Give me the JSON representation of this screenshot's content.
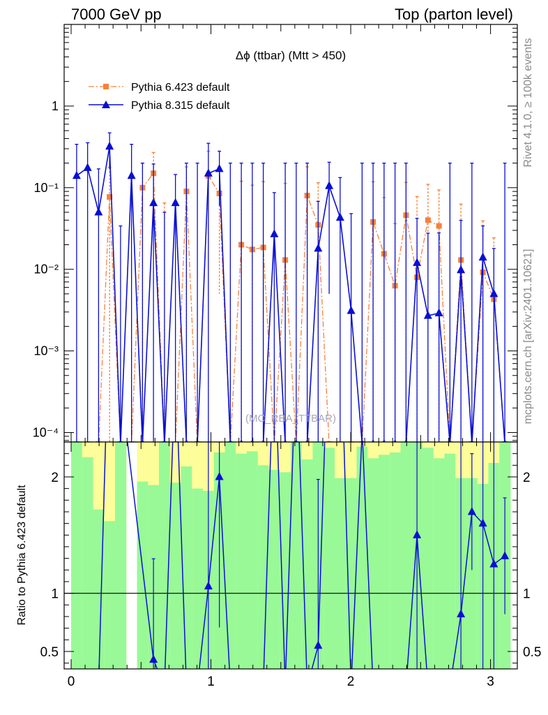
{
  "header": {
    "left": "7000 GeV pp",
    "right": "Top (parton level)"
  },
  "side_labels": {
    "rivet": "Rivet 4.1.0, ≥ 100k events",
    "mcplots": "mcplots.cern.ch [arXiv:2401.10621]"
  },
  "chart_data": [
    {
      "type": "line",
      "title": "Δϕ (ttbar) (Mtt > 450)",
      "watermark": "(MC_RBA_TTBAR)",
      "yscale": "log",
      "xlim": [
        -0.05,
        3.1916
      ],
      "ylim": [
        7.66e-05,
        10
      ],
      "legend_position": "top-left",
      "ytick_labels": {
        "1": "1",
        "0.1": "10⁻¹",
        "0.01": "10⁻²",
        "0.001": "10⁻³",
        "0.0001": "10⁻⁴"
      },
      "series": [
        {
          "name": "Pythia 6.423 default",
          "color": "#f5813a",
          "marker": "square",
          "linestyle": "dash-dot",
          "x": [
            0.0393,
            0.1178,
            0.1963,
            0.2749,
            0.3534,
            0.432,
            0.5105,
            0.589,
            0.6676,
            0.7461,
            0.8247,
            0.9032,
            0.9817,
            1.0603,
            1.1388,
            1.2174,
            1.2959,
            1.3744,
            1.453,
            1.5315,
            1.6101,
            1.6886,
            1.7671,
            1.8457,
            1.9242,
            2.0028,
            2.0813,
            2.1598,
            2.2384,
            2.3169,
            2.3955,
            2.474,
            2.5525,
            2.6311,
            2.7096,
            2.7882,
            2.8667,
            2.9452,
            3.0238,
            3.1023
          ],
          "values": [
            0,
            0,
            0,
            0.077,
            0,
            0,
            0.1,
            0.15,
            0,
            0,
            0.09,
            0,
            0.14,
            0.085,
            0,
            0.02,
            0.0175,
            0.0185,
            0,
            0.013,
            0,
            0.08,
            0.035,
            0,
            0,
            0,
            0,
            0.038,
            0.0155,
            0.0063,
            0.046,
            0.008,
            0.04,
            0.034,
            0,
            0.013,
            0,
            0.0092,
            0.0043,
            0
          ],
          "err": [
            0,
            0,
            0,
            0.1,
            0,
            0,
            0.1,
            0.12,
            0.065,
            0,
            0.09,
            0,
            0.14,
            0.08,
            0,
            0.1,
            0.09,
            0.1,
            0,
            0.1,
            0,
            0.1,
            0.08,
            0,
            0,
            0,
            0,
            0.08,
            0.06,
            0.03,
            0.07,
            0.07,
            0.07,
            0.06,
            0,
            0.05,
            0,
            0.03,
            0.02,
            0
          ]
        },
        {
          "name": "Pythia 8.315 default",
          "color": "#0a0fd2",
          "marker": "triangle",
          "linestyle": "solid",
          "x": [
            0.0393,
            0.1178,
            0.1963,
            0.2749,
            0.3534,
            0.432,
            0.5105,
            0.589,
            0.6676,
            0.7461,
            0.8247,
            0.9032,
            0.9817,
            1.0603,
            1.1388,
            1.2174,
            1.2959,
            1.3744,
            1.453,
            1.5315,
            1.6101,
            1.6886,
            1.7671,
            1.8457,
            1.9242,
            2.0028,
            2.0813,
            2.1598,
            2.2384,
            2.3169,
            2.3955,
            2.474,
            2.5525,
            2.6311,
            2.7096,
            2.7882,
            2.8667,
            2.9452,
            3.0238,
            3.1023
          ],
          "values": [
            0.14,
            0.175,
            0.05,
            0.32,
            0,
            0.14,
            0,
            0.065,
            0,
            0.065,
            0,
            0,
            0.15,
            0.17,
            0,
            0,
            0,
            0,
            0.027,
            0,
            0,
            0,
            0.018,
            0.105,
            0.043,
            0.0031,
            0,
            0,
            0,
            0,
            0,
            0.012,
            0.0027,
            0.0029,
            0,
            0.0098,
            0,
            0.014,
            0.005,
            0
          ],
          "err": [
            0.2,
            0.18,
            0.12,
            0.15,
            0.034,
            0.2,
            0.2,
            0.13,
            0.05,
            0.08,
            0.2,
            0.2,
            0.2,
            0.11,
            0.2,
            0.2,
            0.2,
            0.2,
            0.06,
            0.2,
            0.2,
            0.2,
            0.05,
            0.1,
            0.09,
            0.045,
            0.2,
            0.2,
            0.2,
            0.2,
            0.2,
            0.03,
            0.025,
            0.025,
            0.2,
            0.03,
            0.2,
            0.02,
            0.013,
            0.2
          ]
        }
      ]
    },
    {
      "type": "line",
      "ylabel": "Ratio to Pythia 6.423 default",
      "xlim": [
        -0.05,
        3.1916
      ],
      "ylim": [
        0.35,
        2.3
      ],
      "xticks": [
        0,
        1,
        2,
        3
      ],
      "yticks": [
        0.5,
        1,
        2
      ],
      "reference_line": 1,
      "band_colors": {
        "inner": "#99f997",
        "outer": "#fdfd99"
      },
      "band_edges": [
        0,
        0.0785,
        0.1571,
        0.2356,
        0.3142,
        0.3927,
        0.4712,
        0.5498,
        0.6283,
        0.7069,
        0.7854,
        0.8639,
        0.9425,
        1.021,
        1.0996,
        1.1781,
        1.2566,
        1.3352,
        1.4137,
        1.4923,
        1.5708,
        1.6493,
        1.7279,
        1.8064,
        1.885,
        1.9635,
        2.042,
        2.1206,
        2.1991,
        2.2777,
        2.3562,
        2.4347,
        2.5133,
        2.5918,
        2.6704,
        2.7489,
        2.8274,
        2.906,
        2.9845,
        3.0631,
        3.1416
      ],
      "band_inner_top": [
        2.3,
        2.17,
        1.72,
        1.62,
        2.3,
        0,
        1.96,
        1.93,
        2.3,
        1.95,
        2.09,
        1.9,
        1.88,
        2.21,
        2.3,
        2.2,
        2.22,
        2.1,
        2.06,
        2.04,
        2.3,
        2.15,
        2.3,
        2.25,
        1.99,
        1.99,
        2.26,
        2.16,
        2.19,
        2.21,
        2.3,
        2.3,
        2.25,
        2.16,
        2.2,
        1.99,
        1.99,
        1.94,
        2.12,
        2.3
      ],
      "band_outer_top": [
        2.3,
        2.3,
        2.3,
        2.3,
        2.3,
        0,
        2.3,
        2.3,
        2.3,
        2.3,
        2.3,
        2.3,
        2.3,
        2.3,
        2.3,
        2.3,
        2.3,
        2.3,
        2.3,
        2.3,
        2.3,
        2.3,
        2.3,
        2.3,
        2.3,
        2.3,
        2.3,
        2.3,
        2.3,
        2.3,
        2.3,
        2.3,
        2.3,
        2.3,
        2.3,
        2.3,
        2.3,
        2.3,
        2.3,
        2.3
      ],
      "ratio_x": [
        0.0393,
        0.1178,
        0.1963,
        0.2749,
        0.3534,
        0.589,
        0.6676,
        0.7461,
        0.8247,
        0.9032,
        0.9817,
        1.0603,
        1.1388,
        1.2174,
        1.2959,
        1.3744,
        1.453,
        1.5315,
        1.6101,
        1.6886,
        1.7671,
        1.8457,
        1.9242,
        2.0028,
        2.0813,
        2.1598,
        2.2384,
        2.3169,
        2.3955,
        2.474,
        2.5525,
        2.6311,
        2.7096,
        2.7882,
        2.8667,
        2.9452,
        3.0238,
        3.1023
      ],
      "ratio_values": [
        0.2,
        0.2,
        0.2,
        3.5,
        2.8,
        0.43,
        0.2,
        3.0,
        0.2,
        0.2,
        1.06,
        2.0,
        0.2,
        0.2,
        0.2,
        0.2,
        3.2,
        0.2,
        3.1,
        0.2,
        0.55,
        3.5,
        3.4,
        0.2,
        2.4,
        0.2,
        0.2,
        0.2,
        0.2,
        1.5,
        0.2,
        0.2,
        0.2,
        0.82,
        1.7,
        1.6,
        1.25,
        1.32
      ]
    }
  ]
}
